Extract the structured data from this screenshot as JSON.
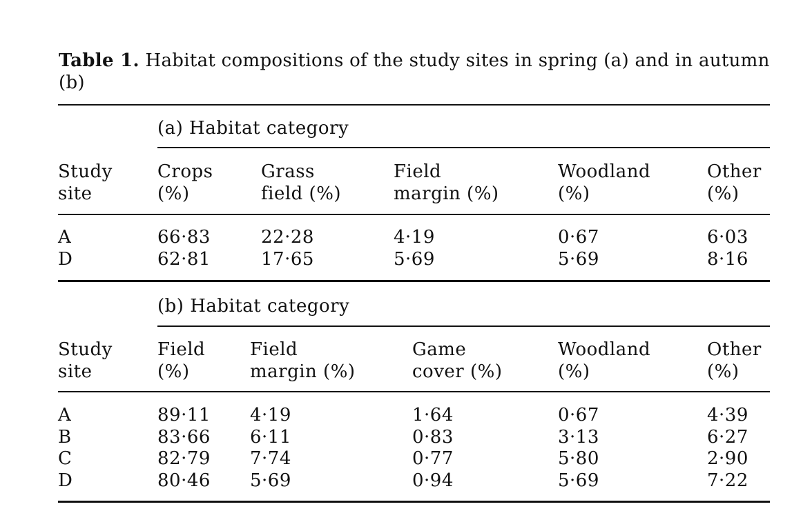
{
  "caption": {
    "label": "Table 1.",
    "text": "Habitat compositions of the study sites in spring (a) and in autumn (b)"
  },
  "panel_a": {
    "group_heading": "(a) Habitat category",
    "headers": [
      {
        "line1": "Study",
        "line2": "site"
      },
      {
        "line1": "Crops",
        "line2": "(%)"
      },
      {
        "line1": "Grass",
        "line2": "field (%)"
      },
      {
        "line1": "Field",
        "line2": "margin (%)"
      },
      {
        "line1": "Woodland",
        "line2": "(%)"
      },
      {
        "line1": "Other",
        "line2": "(%)"
      }
    ],
    "rows": [
      [
        "A",
        "66·83",
        "22·28",
        "4·19",
        "0·67",
        "6·03"
      ],
      [
        "D",
        "62·81",
        "17·65",
        "5·69",
        "5·69",
        "8·16"
      ]
    ]
  },
  "panel_b": {
    "group_heading": "(b) Habitat category",
    "headers": [
      {
        "line1": "Study",
        "line2": "site"
      },
      {
        "line1": "Field",
        "line2": "(%)"
      },
      {
        "line1": "Field",
        "line2": "margin (%)"
      },
      {
        "line1": "Game",
        "line2": "cover (%)"
      },
      {
        "line1": "Woodland",
        "line2": "(%)"
      },
      {
        "line1": "Other",
        "line2": "(%)"
      }
    ],
    "rows": [
      [
        "A",
        "89·11",
        "4·19",
        "1·64",
        "0·67",
        "4·39"
      ],
      [
        "B",
        "83·66",
        "6·11",
        "0·83",
        "3·13",
        "6·27"
      ],
      [
        "C",
        "82·79",
        "7·74",
        "0·77",
        "5·80",
        "2·90"
      ],
      [
        "D",
        "80·46",
        "5·69",
        "0·94",
        "5·69",
        "7·22"
      ]
    ]
  }
}
